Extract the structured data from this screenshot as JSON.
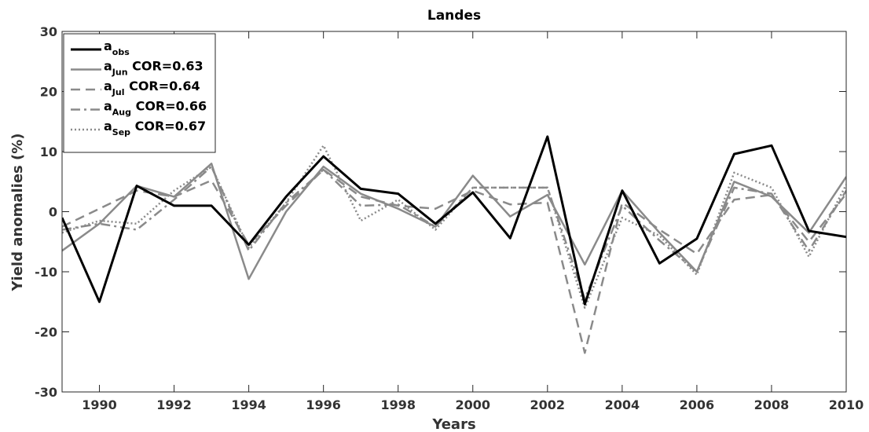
{
  "chart_data": {
    "type": "line",
    "title": "Landes",
    "xlabel": "Years",
    "ylabel": "Yield anomalies (%)",
    "xlim": [
      1989,
      2010
    ],
    "ylim": [
      -30,
      30
    ],
    "x_ticks": [
      1990,
      1992,
      1994,
      1996,
      1998,
      2000,
      2002,
      2004,
      2006,
      2008,
      2010
    ],
    "y_ticks": [
      -30,
      -20,
      -10,
      0,
      10,
      20,
      30
    ],
    "x_tick_labels": [
      "1990",
      "1992",
      "1994",
      "1996",
      "1998",
      "2000",
      "2002",
      "2004",
      "2006",
      "2008",
      "2010"
    ],
    "y_tick_labels": [
      "-30",
      "-20",
      "-10",
      "0",
      "10",
      "20",
      "30"
    ],
    "x": [
      1989,
      1990,
      1991,
      1992,
      1993,
      1994,
      1995,
      1996,
      1997,
      1998,
      1999,
      2000,
      2001,
      2002,
      2003,
      2004,
      2005,
      2006,
      2007,
      2008,
      2009,
      2010
    ],
    "legend_position": "top-left",
    "grid": false,
    "series": [
      {
        "legend_main": "a",
        "legend_sub": "obs",
        "legend_extra": "",
        "color": "#000000",
        "dash": "",
        "width": 3,
        "values": [
          -1,
          -15,
          4.3,
          1,
          1,
          -5.5,
          2.5,
          9.2,
          3.8,
          3,
          -2,
          3.2,
          -4.4,
          12.5,
          -15.4,
          3.5,
          -8.6,
          -4.5,
          9.6,
          11,
          -3.2,
          -4.2
        ]
      },
      {
        "legend_main": "a",
        "legend_sub": "Jun",
        "legend_extra": " COR=0.63",
        "color": "#8a8a8a",
        "dash": "",
        "width": 2.5,
        "values": [
          -6.5,
          -2,
          4.3,
          2.5,
          8,
          -11.2,
          0,
          7.5,
          3,
          0.5,
          -2.5,
          6,
          -0.8,
          2.8,
          -8.8,
          3.5,
          -3.5,
          -10,
          5,
          2.5,
          -3.5,
          5.8
        ]
      },
      {
        "legend_main": "a",
        "legend_sub": "Jul",
        "legend_extra": " COR=0.64",
        "color": "#8a8a8a",
        "dash": "12,7",
        "width": 2.5,
        "values": [
          -2.5,
          0.5,
          3.5,
          2.5,
          5.2,
          -5.5,
          1,
          7,
          2.5,
          1,
          0.5,
          3.5,
          1.2,
          1.5,
          -23.5,
          1.5,
          -3,
          -7,
          2,
          2.8,
          -5,
          3
        ]
      },
      {
        "legend_main": "a",
        "legend_sub": "Aug",
        "legend_extra": " COR=0.66",
        "color": "#8a8a8a",
        "dash": "12,5,3,5",
        "width": 2.5,
        "values": [
          -3,
          -2,
          -3,
          2,
          7.5,
          -6.5,
          1.5,
          7,
          1,
          1.2,
          -2.5,
          4,
          4,
          4,
          -14.5,
          1,
          -4.8,
          -10,
          4,
          3,
          -6.5,
          3.5
        ]
      },
      {
        "legend_main": "a",
        "legend_sub": "Sep",
        "legend_extra": " COR=0.67",
        "color": "#8a8a8a",
        "dash": "2,3",
        "width": 2.5,
        "values": [
          -3.5,
          -1.5,
          -2,
          3.5,
          7.5,
          -6,
          1.5,
          11,
          -1.5,
          2,
          -3,
          4,
          4,
          4,
          -16,
          -1,
          -4,
          -10.5,
          6.5,
          4,
          -7.5,
          4.5
        ]
      }
    ]
  }
}
